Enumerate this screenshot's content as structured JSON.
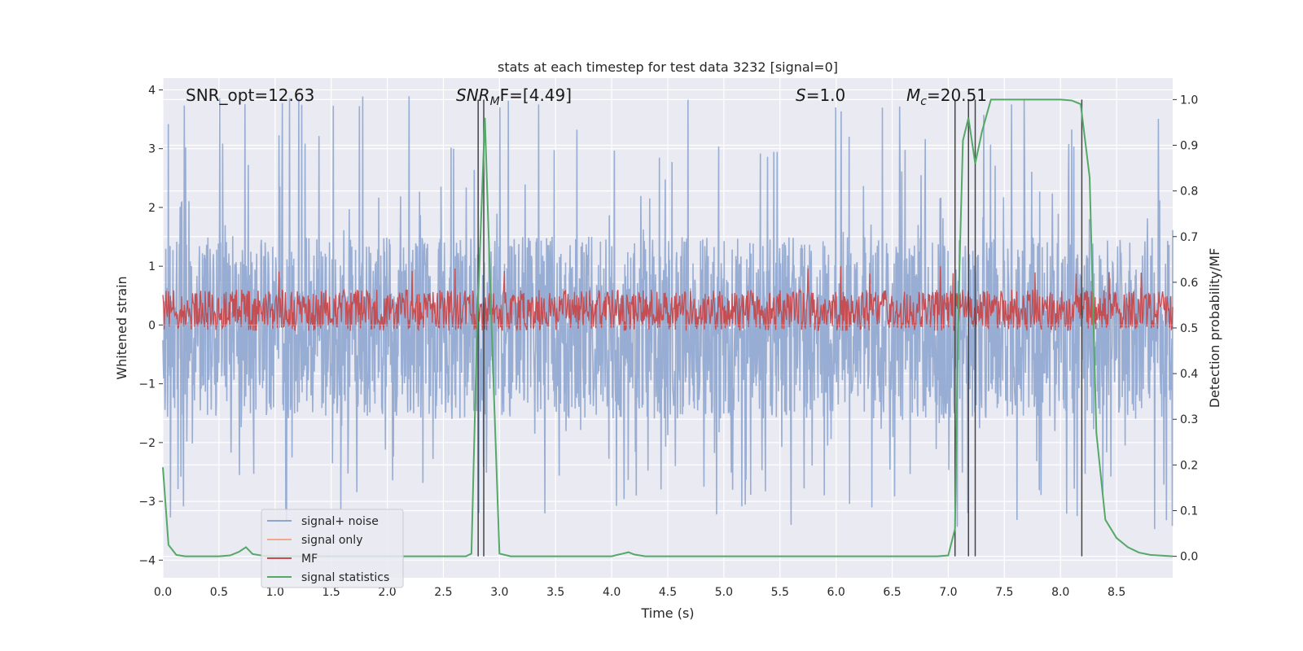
{
  "chart_data": {
    "type": "line",
    "title": "stats at each timestep for test data 3232 [signal=0]",
    "xlabel": "Time (s)",
    "ylabel_left": "Whitened strain",
    "ylabel_right": "Detection probability/MF",
    "xlim": [
      0.0,
      9.0
    ],
    "ylim_left": [
      -4.3,
      4.2
    ],
    "ylim_right": [
      -0.047,
      1.047
    ],
    "xticks": [
      "0.0",
      "0.5",
      "1.0",
      "1.5",
      "2.0",
      "2.5",
      "3.0",
      "3.5",
      "4.0",
      "4.5",
      "5.0",
      "5.5",
      "6.0",
      "6.5",
      "7.0",
      "7.5",
      "8.0",
      "8.5"
    ],
    "yticks_left": [
      "4",
      "3",
      "2",
      "1",
      "0",
      "−1",
      "−2",
      "−3",
      "−4"
    ],
    "yticks_right": [
      "1.0",
      "0.9",
      "0.8",
      "0.7",
      "0.6",
      "0.5",
      "0.4",
      "0.3",
      "0.2",
      "0.1",
      "0.0"
    ],
    "grid": true,
    "legend_position": "lower-left",
    "annotations": [
      {
        "text": "SNR_opt=12.63",
        "x": 0.2
      },
      {
        "text": "SNR_MF=[4.49]",
        "x": 2.6
      },
      {
        "text": "S=1.0",
        "x": 5.6
      },
      {
        "text": "M_c=20.51",
        "x": 6.6
      }
    ],
    "annotation_parts": {
      "snr_opt": "SNR_opt=12.63",
      "snr_mf_base": "SNR",
      "snr_mf_sub": "M",
      "snr_mf_rest": "F=[4.49]",
      "s_var": "S",
      "s_rest": "=1.0",
      "mc_base": "M",
      "mc_sub": "c",
      "mc_rest": "=20.51"
    },
    "vertical_lines_x": [
      2.81,
      2.86,
      7.06,
      7.18,
      7.24,
      8.19
    ],
    "series": [
      {
        "name": "signal+ noise",
        "color": "#8fa6cf",
        "kind": "noise",
        "envelope_upper": 1.5,
        "envelope_lower": -1.6,
        "spike_max": 3.9,
        "spike_min": -3.5
      },
      {
        "name": "signal only",
        "color": "#f0a98a",
        "kind": "flat",
        "value": 0.0
      },
      {
        "name": "MF",
        "color": "#c44e52",
        "kind": "noise",
        "center": 0.25,
        "amplitude": 0.35
      },
      {
        "name": "signal statistics",
        "color": "#55a868",
        "kind": "line",
        "axis": "right",
        "x": [
          0.0,
          0.05,
          0.12,
          0.2,
          0.3,
          0.5,
          0.6,
          0.68,
          0.74,
          0.8,
          0.9,
          1.0,
          2.0,
          2.5,
          2.7,
          2.75,
          2.8,
          2.87,
          2.93,
          3.0,
          3.1,
          3.5,
          4.0,
          4.05,
          4.1,
          4.15,
          4.2,
          4.3,
          5.0,
          6.0,
          6.9,
          7.0,
          7.06,
          7.09,
          7.13,
          7.18,
          7.24,
          7.3,
          7.38,
          7.5,
          8.0,
          8.1,
          8.18,
          8.26,
          8.32,
          8.4,
          8.5,
          8.6,
          8.7,
          8.8,
          9.0
        ],
        "y": [
          0.195,
          0.025,
          0.003,
          0.0,
          0.0,
          0.0,
          0.002,
          0.01,
          0.02,
          0.005,
          0.001,
          0.0,
          0.0,
          0.0,
          0.0,
          0.006,
          0.5,
          0.96,
          0.5,
          0.006,
          0.0,
          0.0,
          0.0,
          0.003,
          0.006,
          0.009,
          0.004,
          0.0,
          0.0,
          0.0,
          0.0,
          0.002,
          0.06,
          0.54,
          0.91,
          0.96,
          0.86,
          0.93,
          1.0,
          1.0,
          1.0,
          0.998,
          0.99,
          0.83,
          0.27,
          0.08,
          0.04,
          0.02,
          0.008,
          0.003,
          0.0
        ]
      }
    ]
  }
}
